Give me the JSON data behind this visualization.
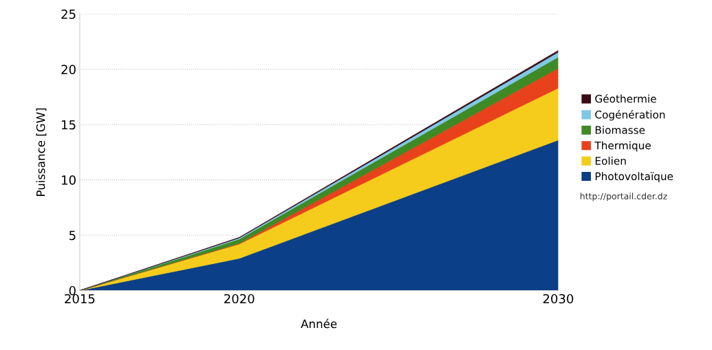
{
  "chart_data": {
    "type": "area",
    "stacked": true,
    "xlabel": "Année",
    "ylabel": "Puissance [GW]",
    "x": [
      2015,
      2020,
      2030
    ],
    "xlim": [
      2015,
      2030
    ],
    "xticks": [
      2015,
      2020,
      2030
    ],
    "ylim": [
      0,
      25
    ],
    "yticks": [
      0,
      5,
      10,
      15,
      20,
      25
    ],
    "grid": "y",
    "legend": "right",
    "series": [
      {
        "name": "Photovoltaïque",
        "color": "#0b3f87",
        "values": [
          0,
          2.9,
          13.6
        ]
      },
      {
        "name": "Eolien",
        "color": "#f5cc1c",
        "values": [
          0,
          1.3,
          4.7
        ]
      },
      {
        "name": "Thermique",
        "color": "#e8421c",
        "values": [
          0,
          0.05,
          1.8
        ]
      },
      {
        "name": "Biomasse",
        "color": "#3f8a24",
        "values": [
          0,
          0.4,
          1.0
        ]
      },
      {
        "name": "Cogénération",
        "color": "#7fc8e6",
        "values": [
          0,
          0.1,
          0.45
        ]
      },
      {
        "name": "Géothermie",
        "color": "#3a0c14",
        "values": [
          0,
          0.05,
          0.15
        ]
      }
    ],
    "annotations": [
      "http://portail.cder.dz"
    ]
  }
}
